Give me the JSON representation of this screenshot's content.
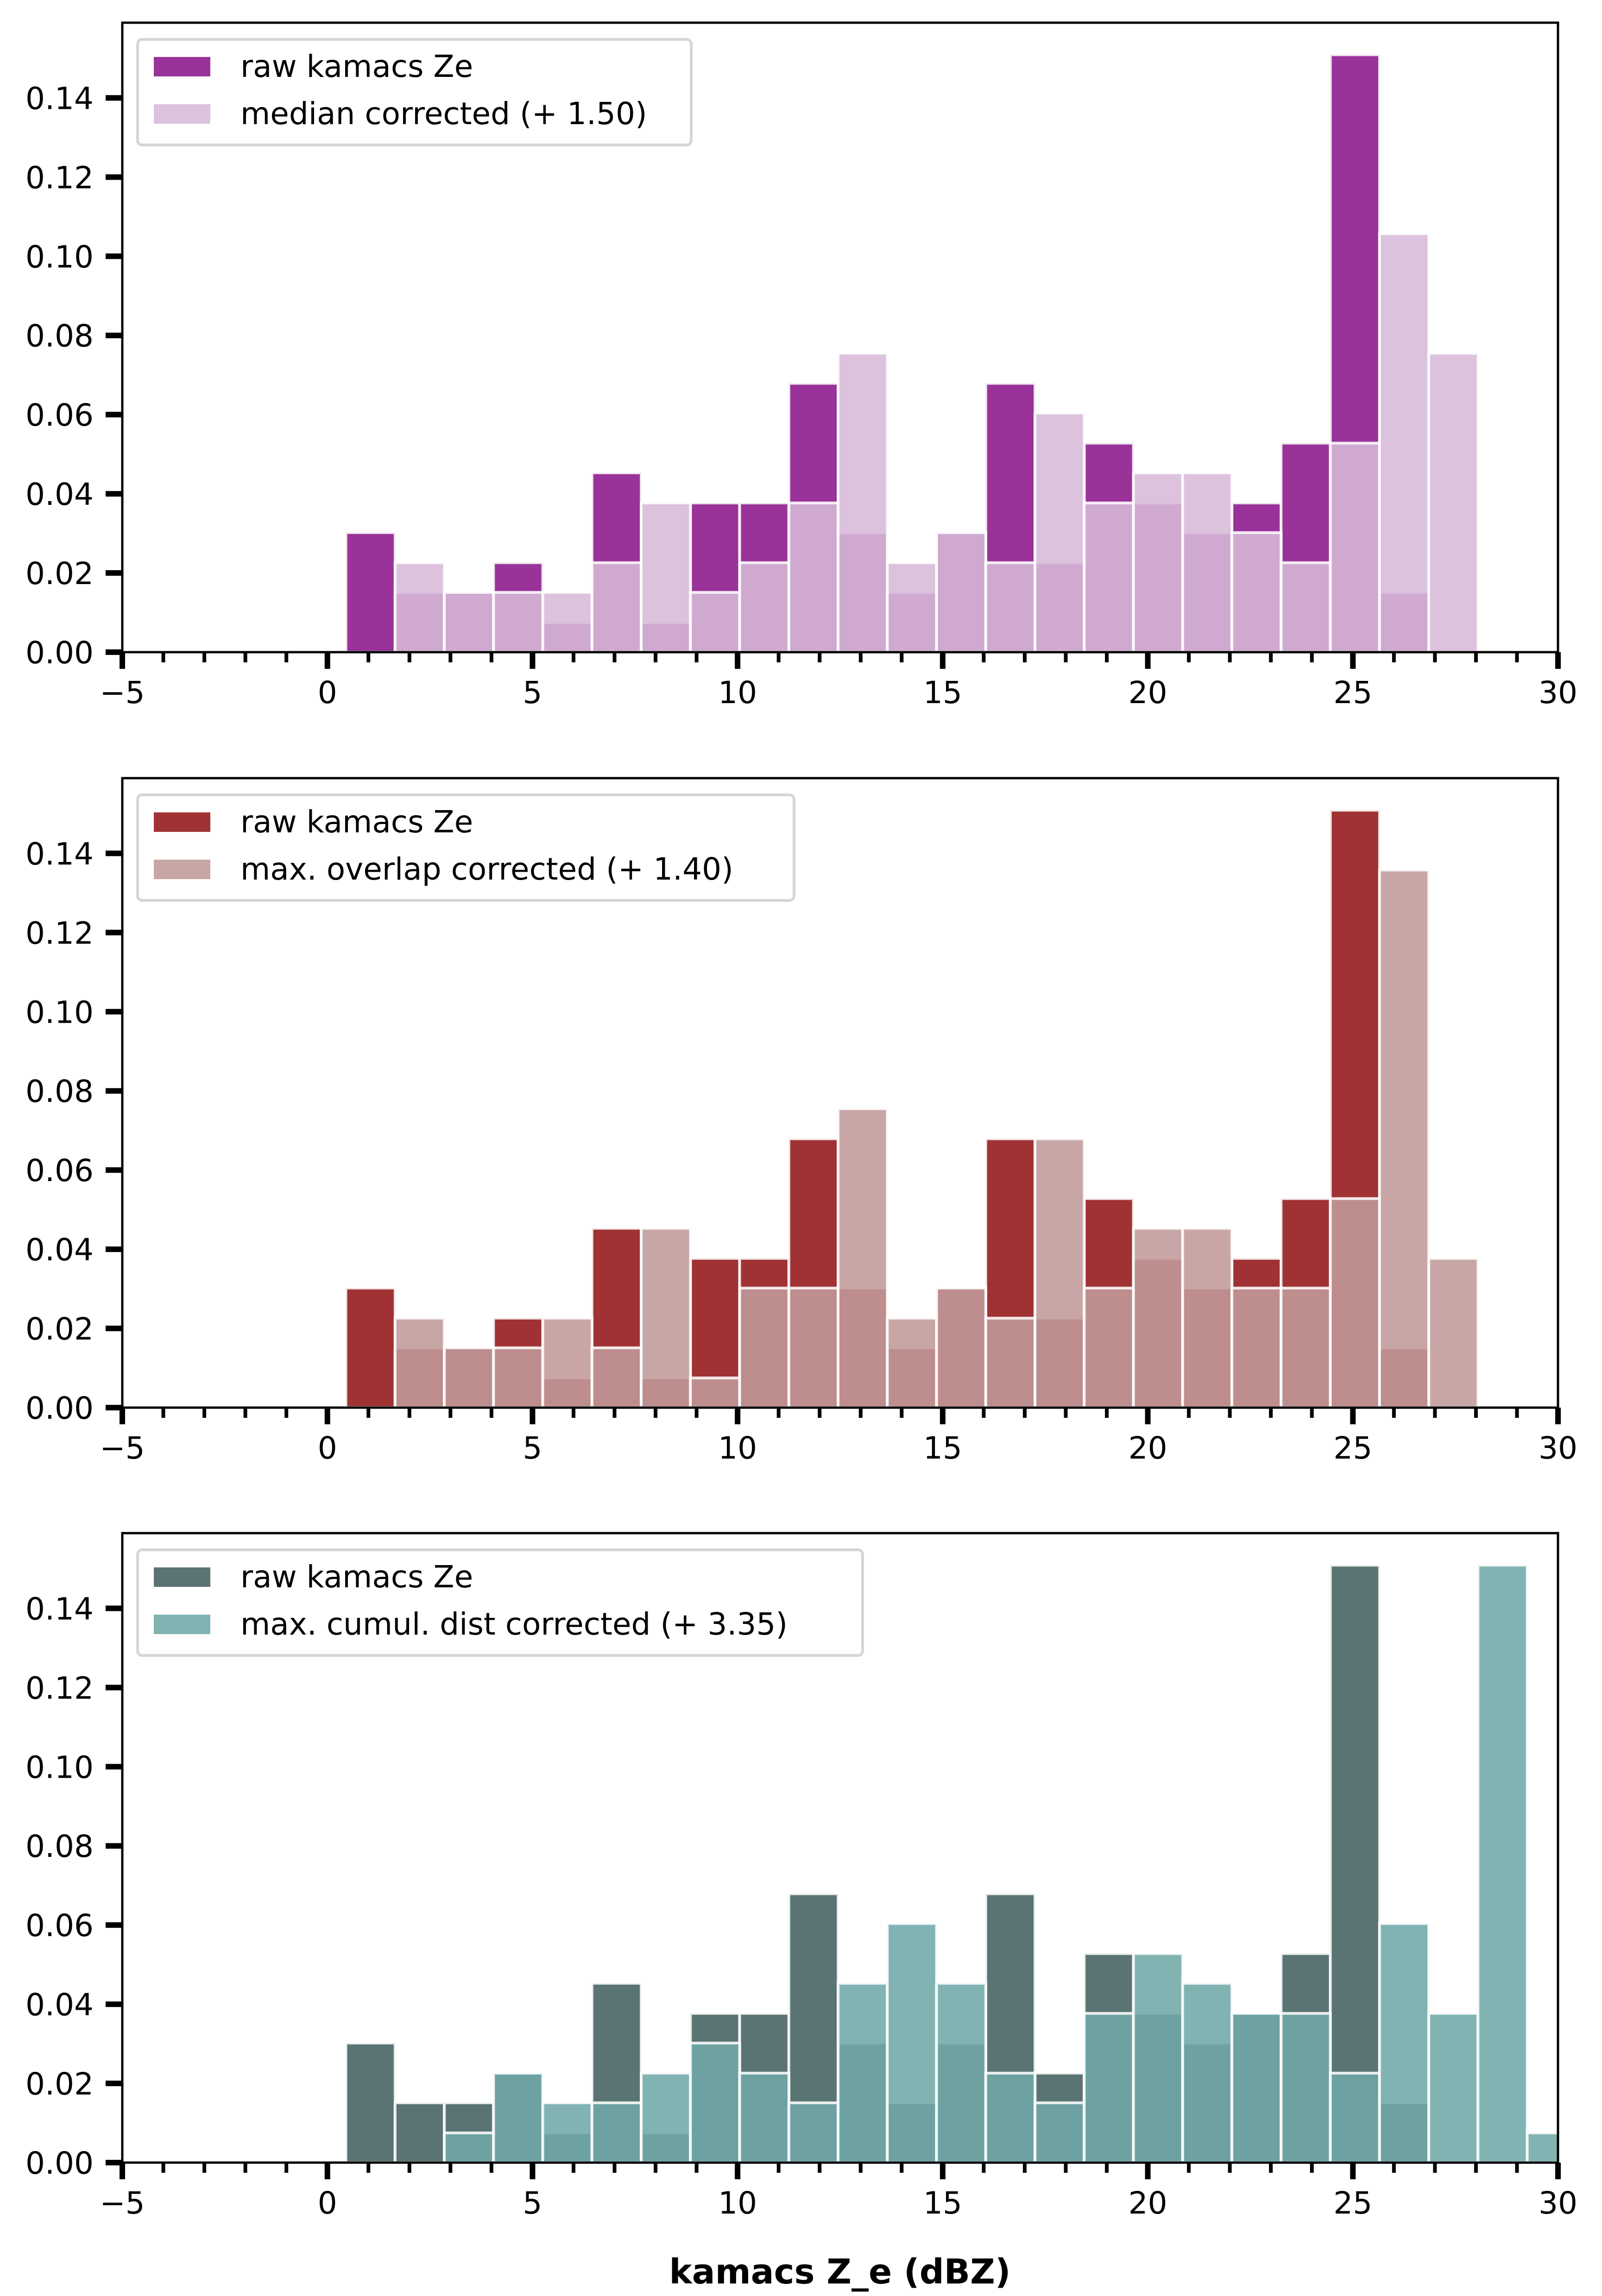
{
  "figure": {
    "xlabel": "kamacs Z_e (dBZ)"
  },
  "chart_data": [
    {
      "type": "bar",
      "subtype": "overlaid-histogram",
      "title": "",
      "xlabel": "",
      "ylabel": "",
      "xlim": [
        -5,
        30
      ],
      "ylim": [
        0,
        0.159
      ],
      "grid": false,
      "legend_position": "top-left",
      "x_ticks": [
        "−5",
        "0",
        "5",
        "10",
        "15",
        "20",
        "25",
        "30"
      ],
      "x_tick_values": [
        -5,
        0,
        5,
        10,
        15,
        20,
        25,
        30
      ],
      "y_ticks": [
        "0.00",
        "0.02",
        "0.04",
        "0.06",
        "0.08",
        "0.10",
        "0.12",
        "0.14"
      ],
      "y_tick_values": [
        0,
        0.02,
        0.04,
        0.06,
        0.08,
        0.1,
        0.12,
        0.14
      ],
      "bin_start": 0.45,
      "bin_width": 1.2,
      "series": [
        {
          "name": "raw kamacs Ze",
          "color": "#993399",
          "values": [
            0.0302,
            0.0151,
            0.0151,
            0.0226,
            0.0075,
            0.0453,
            0.0075,
            0.0377,
            0.0377,
            0.0679,
            0.0302,
            0.0151,
            0.0302,
            0.0679,
            0.0226,
            0.0528,
            0.0377,
            0.0302,
            0.0377,
            0.0528,
            0.1509,
            0.0151,
            0
          ]
        },
        {
          "name": "median corrected (+ 1.50)",
          "color": "#d7bad8",
          "values": [
            0,
            0.0226,
            0.0151,
            0.0151,
            0.0151,
            0.0226,
            0.0377,
            0.0151,
            0.0226,
            0.0377,
            0.0755,
            0.0226,
            0.0302,
            0.0226,
            0.0604,
            0.0377,
            0.0453,
            0.0453,
            0.0302,
            0.0226,
            0.0528,
            0.1057,
            0.0755
          ]
        }
      ]
    },
    {
      "type": "bar",
      "subtype": "overlaid-histogram",
      "title": "",
      "xlabel": "",
      "ylabel": "",
      "xlim": [
        -5,
        30
      ],
      "ylim": [
        0,
        0.159
      ],
      "grid": false,
      "legend_position": "top-left",
      "x_ticks": [
        "−5",
        "0",
        "5",
        "10",
        "15",
        "20",
        "25",
        "30"
      ],
      "x_tick_values": [
        -5,
        0,
        5,
        10,
        15,
        20,
        25,
        30
      ],
      "y_ticks": [
        "0.00",
        "0.02",
        "0.04",
        "0.06",
        "0.08",
        "0.10",
        "0.12",
        "0.14"
      ],
      "y_tick_values": [
        0,
        0.02,
        0.04,
        0.06,
        0.08,
        0.1,
        0.12,
        0.14
      ],
      "bin_start": 0.45,
      "bin_width": 1.2,
      "series": [
        {
          "name": "raw kamacs Ze",
          "color": "#a03234",
          "values": [
            0.0302,
            0.0151,
            0.0151,
            0.0226,
            0.0075,
            0.0453,
            0.0075,
            0.0377,
            0.0377,
            0.0679,
            0.0302,
            0.0151,
            0.0302,
            0.0679,
            0.0226,
            0.0528,
            0.0377,
            0.0302,
            0.0377,
            0.0528,
            0.1509,
            0.0151,
            0
          ]
        },
        {
          "name": "max. overlap corrected (+ 1.40)",
          "color": "#c29a9a",
          "values": [
            0,
            0.0226,
            0.0151,
            0.0151,
            0.0226,
            0.0151,
            0.0453,
            0.0075,
            0.0302,
            0.0302,
            0.0755,
            0.0226,
            0.0302,
            0.0226,
            0.0679,
            0.0302,
            0.0453,
            0.0453,
            0.0302,
            0.0302,
            0.0528,
            0.1358,
            0.0377
          ]
        }
      ]
    },
    {
      "type": "bar",
      "subtype": "overlaid-histogram",
      "title": "",
      "xlabel": "kamacs Z_e (dBZ)",
      "ylabel": "",
      "xlim": [
        -5,
        30
      ],
      "ylim": [
        0,
        0.159
      ],
      "grid": false,
      "legend_position": "top-left",
      "x_ticks": [
        "−5",
        "0",
        "5",
        "10",
        "15",
        "20",
        "25",
        "30"
      ],
      "x_tick_values": [
        -5,
        0,
        5,
        10,
        15,
        20,
        25,
        30
      ],
      "y_ticks": [
        "0.00",
        "0.02",
        "0.04",
        "0.06",
        "0.08",
        "0.10",
        "0.12",
        "0.14"
      ],
      "y_tick_values": [
        0,
        0.02,
        0.04,
        0.06,
        0.08,
        0.1,
        0.12,
        0.14
      ],
      "bin_start": 0.45,
      "bin_width": 1.2,
      "series": [
        {
          "name": "raw kamacs Ze",
          "color": "#5a7473",
          "values": [
            0.0302,
            0.0151,
            0.0151,
            0.0226,
            0.0075,
            0.0453,
            0.0075,
            0.0377,
            0.0377,
            0.0679,
            0.0302,
            0.0151,
            0.0302,
            0.0679,
            0.0226,
            0.0528,
            0.0377,
            0.0302,
            0.0377,
            0.0528,
            0.1509,
            0.0151,
            0,
            0,
            0
          ]
        },
        {
          "name": "max. cumul. dist corrected (+ 3.35)",
          "color": "#71a8a8",
          "values": [
            0,
            0,
            0.0075,
            0.0226,
            0.0151,
            0.0151,
            0.0226,
            0.0302,
            0.0226,
            0.0151,
            0.0453,
            0.0604,
            0.0453,
            0.0226,
            0.0151,
            0.0377,
            0.0528,
            0.0453,
            0.0377,
            0.0377,
            0.0226,
            0.0604,
            0.0377,
            0.1509,
            0.0075
          ]
        }
      ]
    }
  ]
}
